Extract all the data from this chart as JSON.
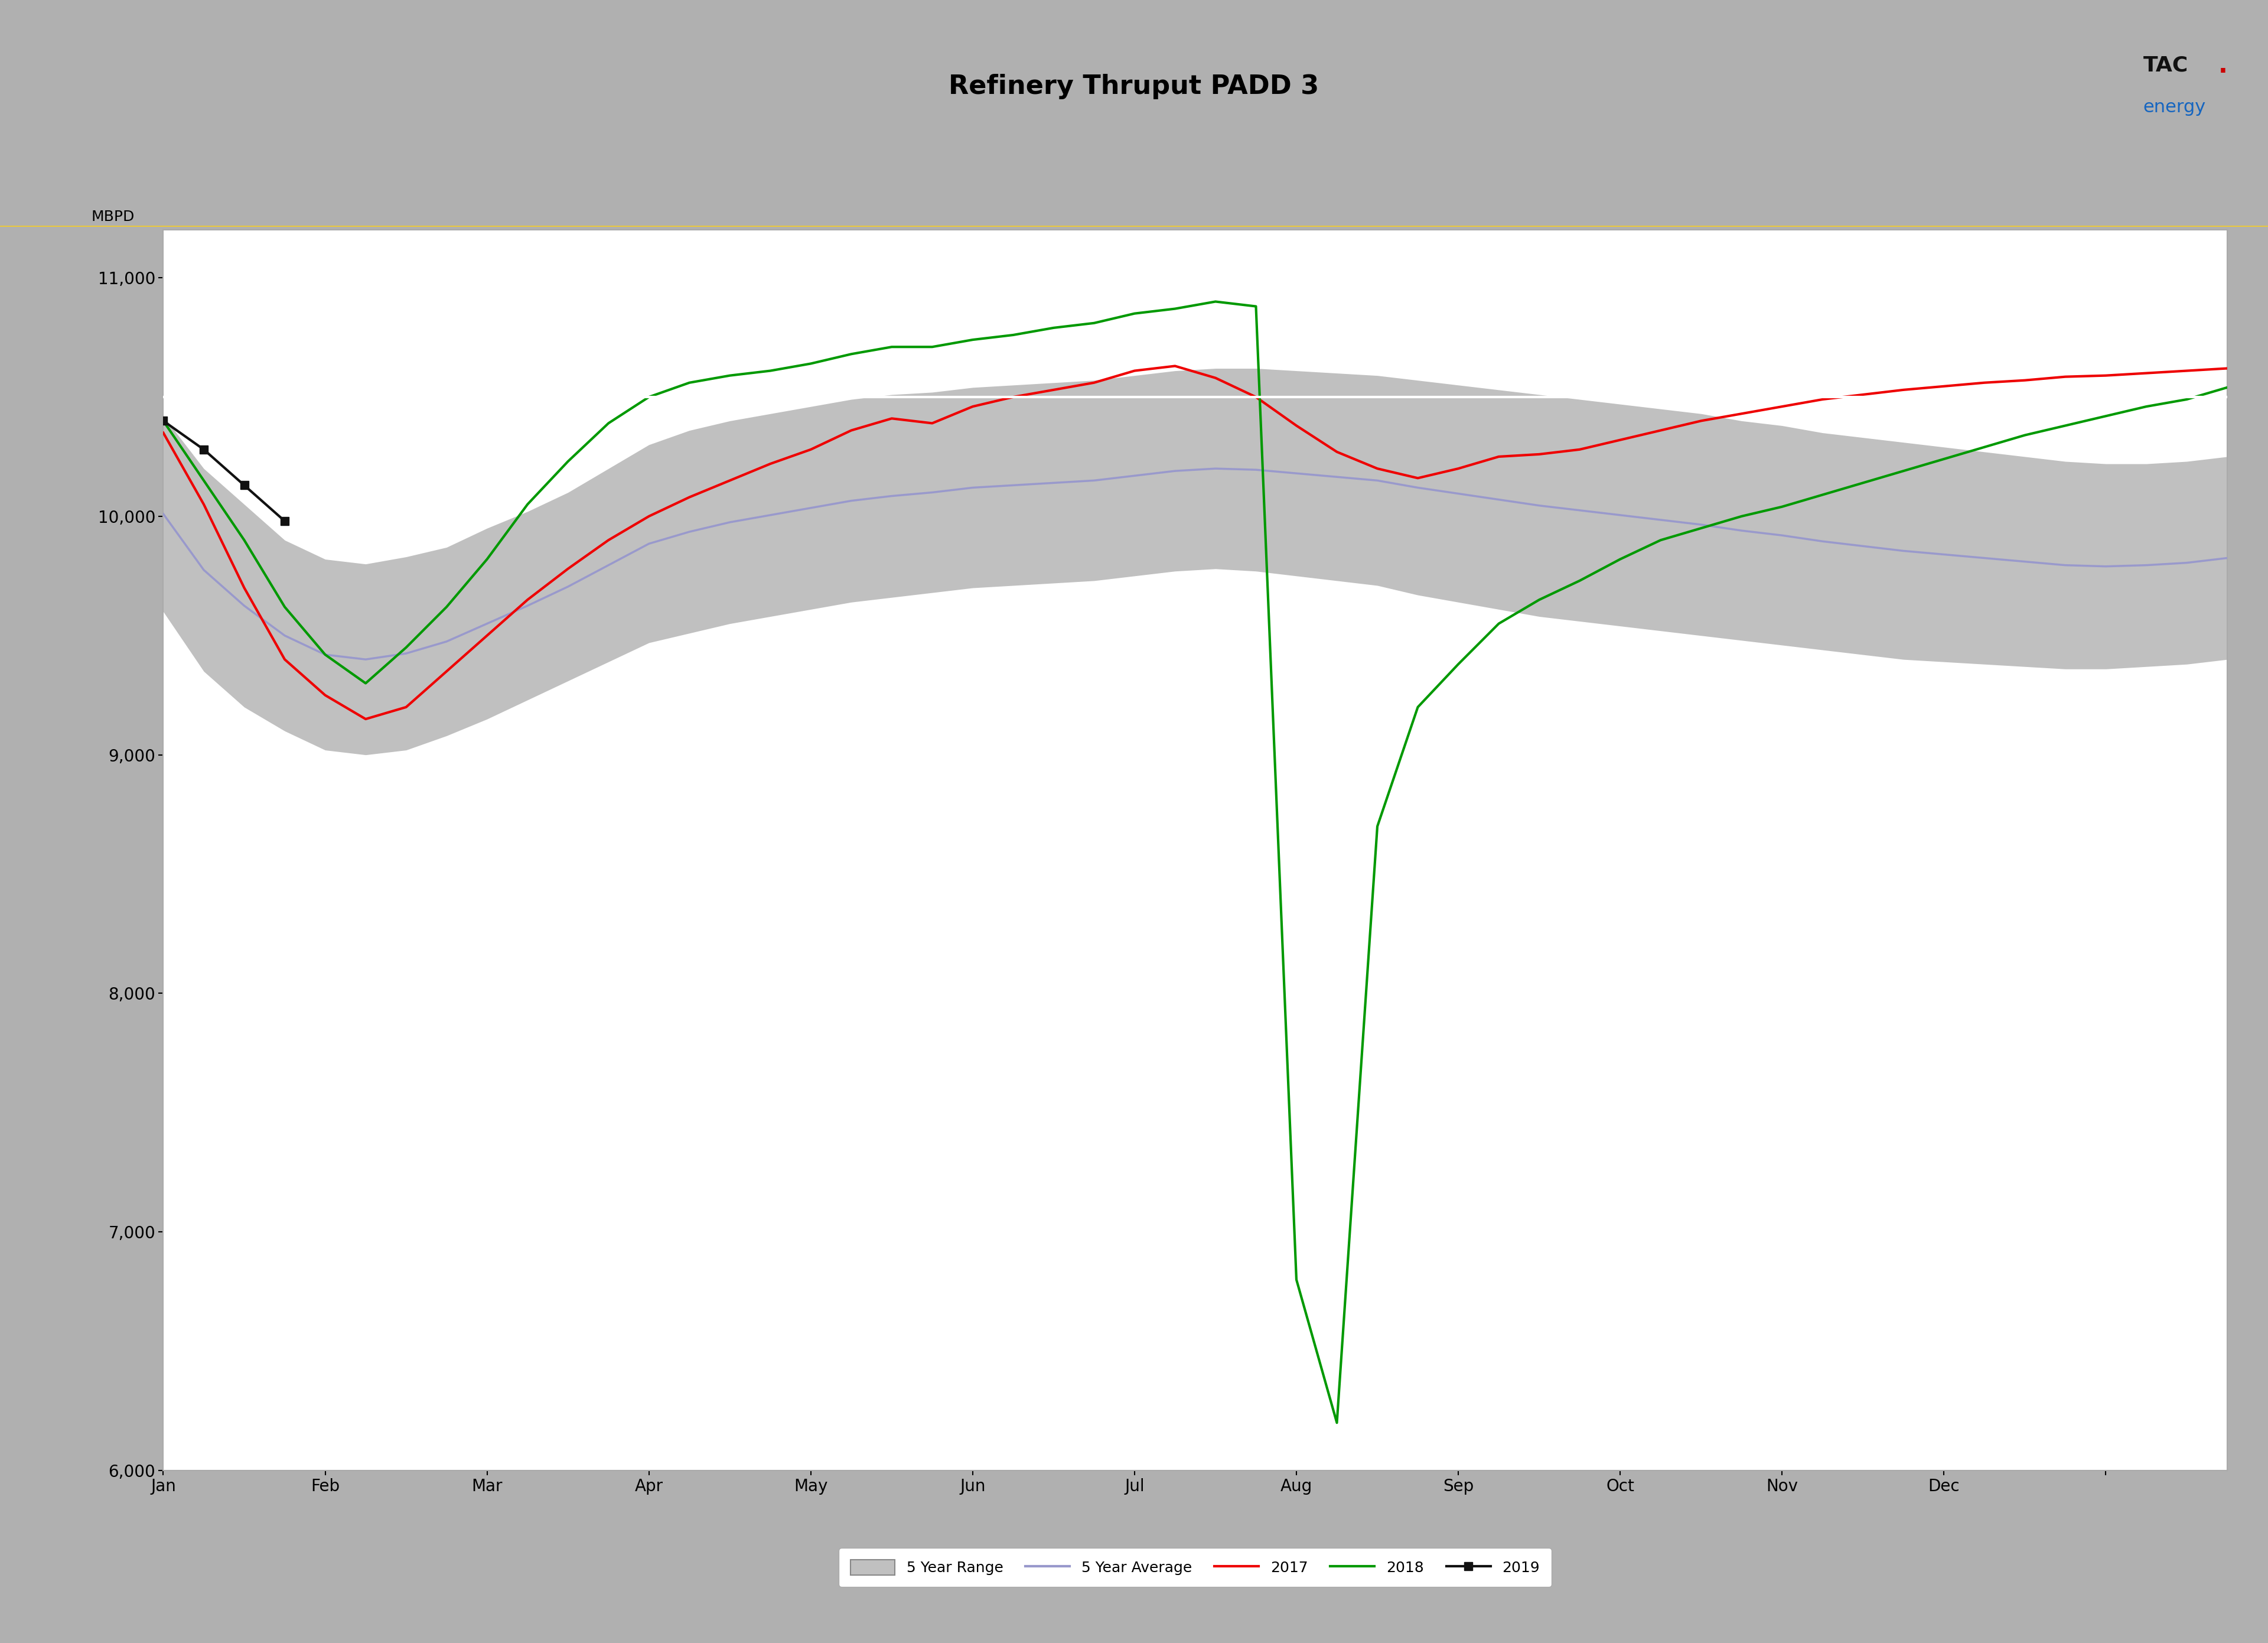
{
  "title": "Refinery Thruput PADD 3",
  "title_fontsize": 32,
  "header_bg_color": "#b0b0b0",
  "blue_bar_color": "#1565c0",
  "plot_bg_color": "#ffffff",
  "outer_bg_color": "#b0b0b0",
  "ylabel": "MBPD",
  "ylabel_color": "#000000",
  "ylabel_fontsize": 18,
  "hline_value": 10500,
  "hline_color": "#ffffff",
  "hline_lw": 3,
  "weeks": 52,
  "range_fill_color": "#c0c0c0",
  "range_edge_color": "#999999",
  "range_alpha": 1.0,
  "avg_color": "#9999cc",
  "yr2017_color": "#ee0000",
  "yr2018_color": "#009900",
  "yr2019_color": "#111111",
  "yr2017_lw": 3,
  "yr2018_lw": 3,
  "yr2019_lw": 3,
  "avg_lw": 2.5,
  "range_upper": [
    10420,
    10200,
    10050,
    9900,
    9820,
    9800,
    9830,
    9870,
    9950,
    10020,
    10100,
    10200,
    10300,
    10360,
    10400,
    10430,
    10460,
    10490,
    10510,
    10520,
    10540,
    10550,
    10560,
    10570,
    10590,
    10610,
    10620,
    10620,
    10610,
    10600,
    10590,
    10570,
    10550,
    10530,
    10510,
    10490,
    10470,
    10450,
    10430,
    10400,
    10380,
    10350,
    10330,
    10310,
    10290,
    10270,
    10250,
    10230,
    10220,
    10220,
    10230,
    10250
  ],
  "range_lower": [
    9600,
    9350,
    9200,
    9100,
    9020,
    9000,
    9020,
    9080,
    9150,
    9230,
    9310,
    9390,
    9470,
    9510,
    9550,
    9580,
    9610,
    9640,
    9660,
    9680,
    9700,
    9710,
    9720,
    9730,
    9750,
    9770,
    9780,
    9770,
    9750,
    9730,
    9710,
    9670,
    9640,
    9610,
    9580,
    9560,
    9540,
    9520,
    9500,
    9480,
    9460,
    9440,
    9420,
    9400,
    9390,
    9380,
    9370,
    9360,
    9360,
    9370,
    9380,
    9400
  ],
  "avg_data": [
    10010,
    9775,
    9625,
    9500,
    9420,
    9400,
    9425,
    9475,
    9550,
    9625,
    9705,
    9795,
    9885,
    9935,
    9975,
    10005,
    10035,
    10065,
    10085,
    10100,
    10120,
    10130,
    10140,
    10150,
    10170,
    10190,
    10200,
    10195,
    10180,
    10165,
    10150,
    10120,
    10095,
    10070,
    10045,
    10025,
    10005,
    9985,
    9965,
    9940,
    9920,
    9895,
    9875,
    9855,
    9840,
    9825,
    9810,
    9795,
    9790,
    9795,
    9805,
    9825
  ],
  "yr2017_data": [
    10350,
    10050,
    9700,
    9400,
    9250,
    9150,
    9200,
    9350,
    9500,
    9650,
    9780,
    9900,
    10000,
    10080,
    10150,
    10220,
    10280,
    10360,
    10410,
    10390,
    10460,
    10500,
    10530,
    10560,
    10610,
    10630,
    10580,
    10500,
    10380,
    10270,
    10200,
    10160,
    10200,
    10250,
    10260,
    10280,
    10320,
    10360,
    10400,
    10430,
    10460,
    10490,
    10510,
    10530,
    10545,
    10560,
    10570,
    10585,
    10590,
    10600,
    10610,
    10620
  ],
  "yr2018_data": [
    10400,
    10150,
    9900,
    9620,
    9420,
    9300,
    9450,
    9620,
    9820,
    10050,
    10230,
    10390,
    10500,
    10560,
    10590,
    10610,
    10640,
    10680,
    10710,
    10710,
    10740,
    10760,
    10790,
    10810,
    10850,
    10870,
    10900,
    10880,
    6800,
    6200,
    8700,
    9200,
    9380,
    9550,
    9650,
    9730,
    9820,
    9900,
    9950,
    10000,
    10040,
    10090,
    10140,
    10190,
    10240,
    10290,
    10340,
    10380,
    10420,
    10460,
    10490,
    10540
  ],
  "yr2019_data": [
    10400,
    10280,
    10130,
    9980,
    null,
    null,
    null,
    null,
    null,
    null,
    null,
    null,
    null,
    null,
    null,
    null,
    null,
    null,
    null,
    null,
    null,
    null,
    null,
    null,
    null,
    null,
    null,
    null,
    null,
    null,
    null,
    null,
    null,
    null,
    null,
    null,
    null,
    null,
    null,
    null,
    null,
    null,
    null,
    null,
    null,
    null,
    null,
    null,
    null,
    null,
    null,
    null
  ],
  "xlim": [
    0,
    51
  ],
  "ylim": [
    6000,
    11200
  ],
  "ytick_values": [
    6000,
    7000,
    8000,
    9000,
    10000,
    11000
  ],
  "ytick_labels": [
    "6,000",
    "7,000",
    "8,000",
    "9,000",
    "10,000",
    "11,000"
  ],
  "xtick_positions": [
    0,
    4,
    8,
    12,
    16,
    20,
    24,
    28,
    32,
    36,
    40,
    44,
    48
  ],
  "xtick_labels": [
    "Jan",
    "Feb",
    "Mar",
    "Apr",
    "May",
    "Jun",
    "Jul",
    "Aug",
    "Sep",
    "Oct",
    "Nov",
    "Dec",
    ""
  ],
  "tick_color": "#000000",
  "tick_fontsize": 20,
  "spine_color": "#aaaaaa",
  "grid_on": false,
  "legend_fontsize": 18,
  "logo_text_TAC": "TAC",
  "logo_text_energy": "energy",
  "logo_color_TAC": "#111111",
  "logo_color_energy": "#1565c0",
  "logo_red_dot_color": "#cc0000",
  "yellow_line_color": "#e8c840",
  "yellow_line_lw": 3
}
